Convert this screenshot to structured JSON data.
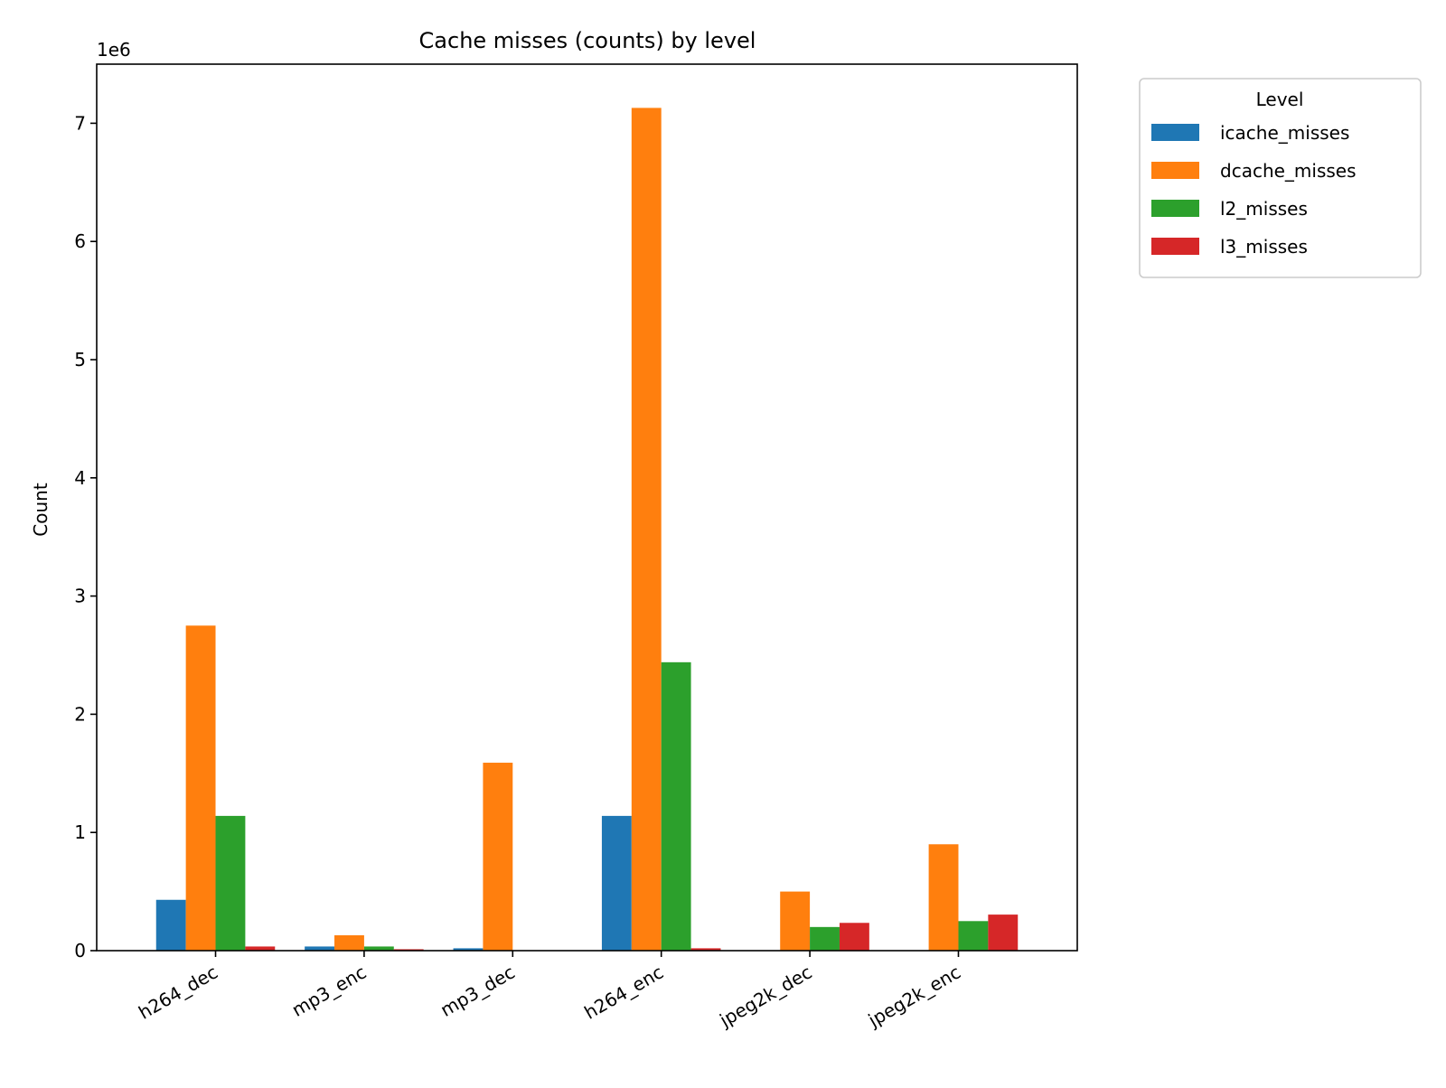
{
  "chart_data": {
    "type": "bar",
    "title": "Cache misses (counts) by level",
    "ylabel": "Count",
    "xlabel": "",
    "y_offset_label": "1e6",
    "y_scale_factor": 1000000,
    "ylim": [
      0,
      7.5
    ],
    "yticks": [
      0,
      1,
      2,
      3,
      4,
      5,
      6,
      7
    ],
    "categories": [
      "h264_dec",
      "mp3_enc",
      "mp3_dec",
      "h264_enc",
      "jpeg2k_dec",
      "jpeg2k_enc"
    ],
    "legend": {
      "title": "Level",
      "placement": "outside-top-right"
    },
    "series": [
      {
        "name": "icache_misses",
        "color": "#1f77b4",
        "values": [
          0.43,
          0.035,
          0.02,
          1.14,
          0,
          0
        ]
      },
      {
        "name": "dcache_misses",
        "color": "#ff7f0e",
        "values": [
          2.75,
          0.13,
          1.59,
          7.13,
          0.5,
          0.9
        ]
      },
      {
        "name": "l2_misses",
        "color": "#2ca02c",
        "values": [
          1.14,
          0.035,
          0,
          2.44,
          0.2,
          0.25
        ]
      },
      {
        "name": "l3_misses",
        "color": "#d62728",
        "values": [
          0.035,
          0.012,
          0,
          0.02,
          0.235,
          0.305
        ]
      }
    ]
  }
}
